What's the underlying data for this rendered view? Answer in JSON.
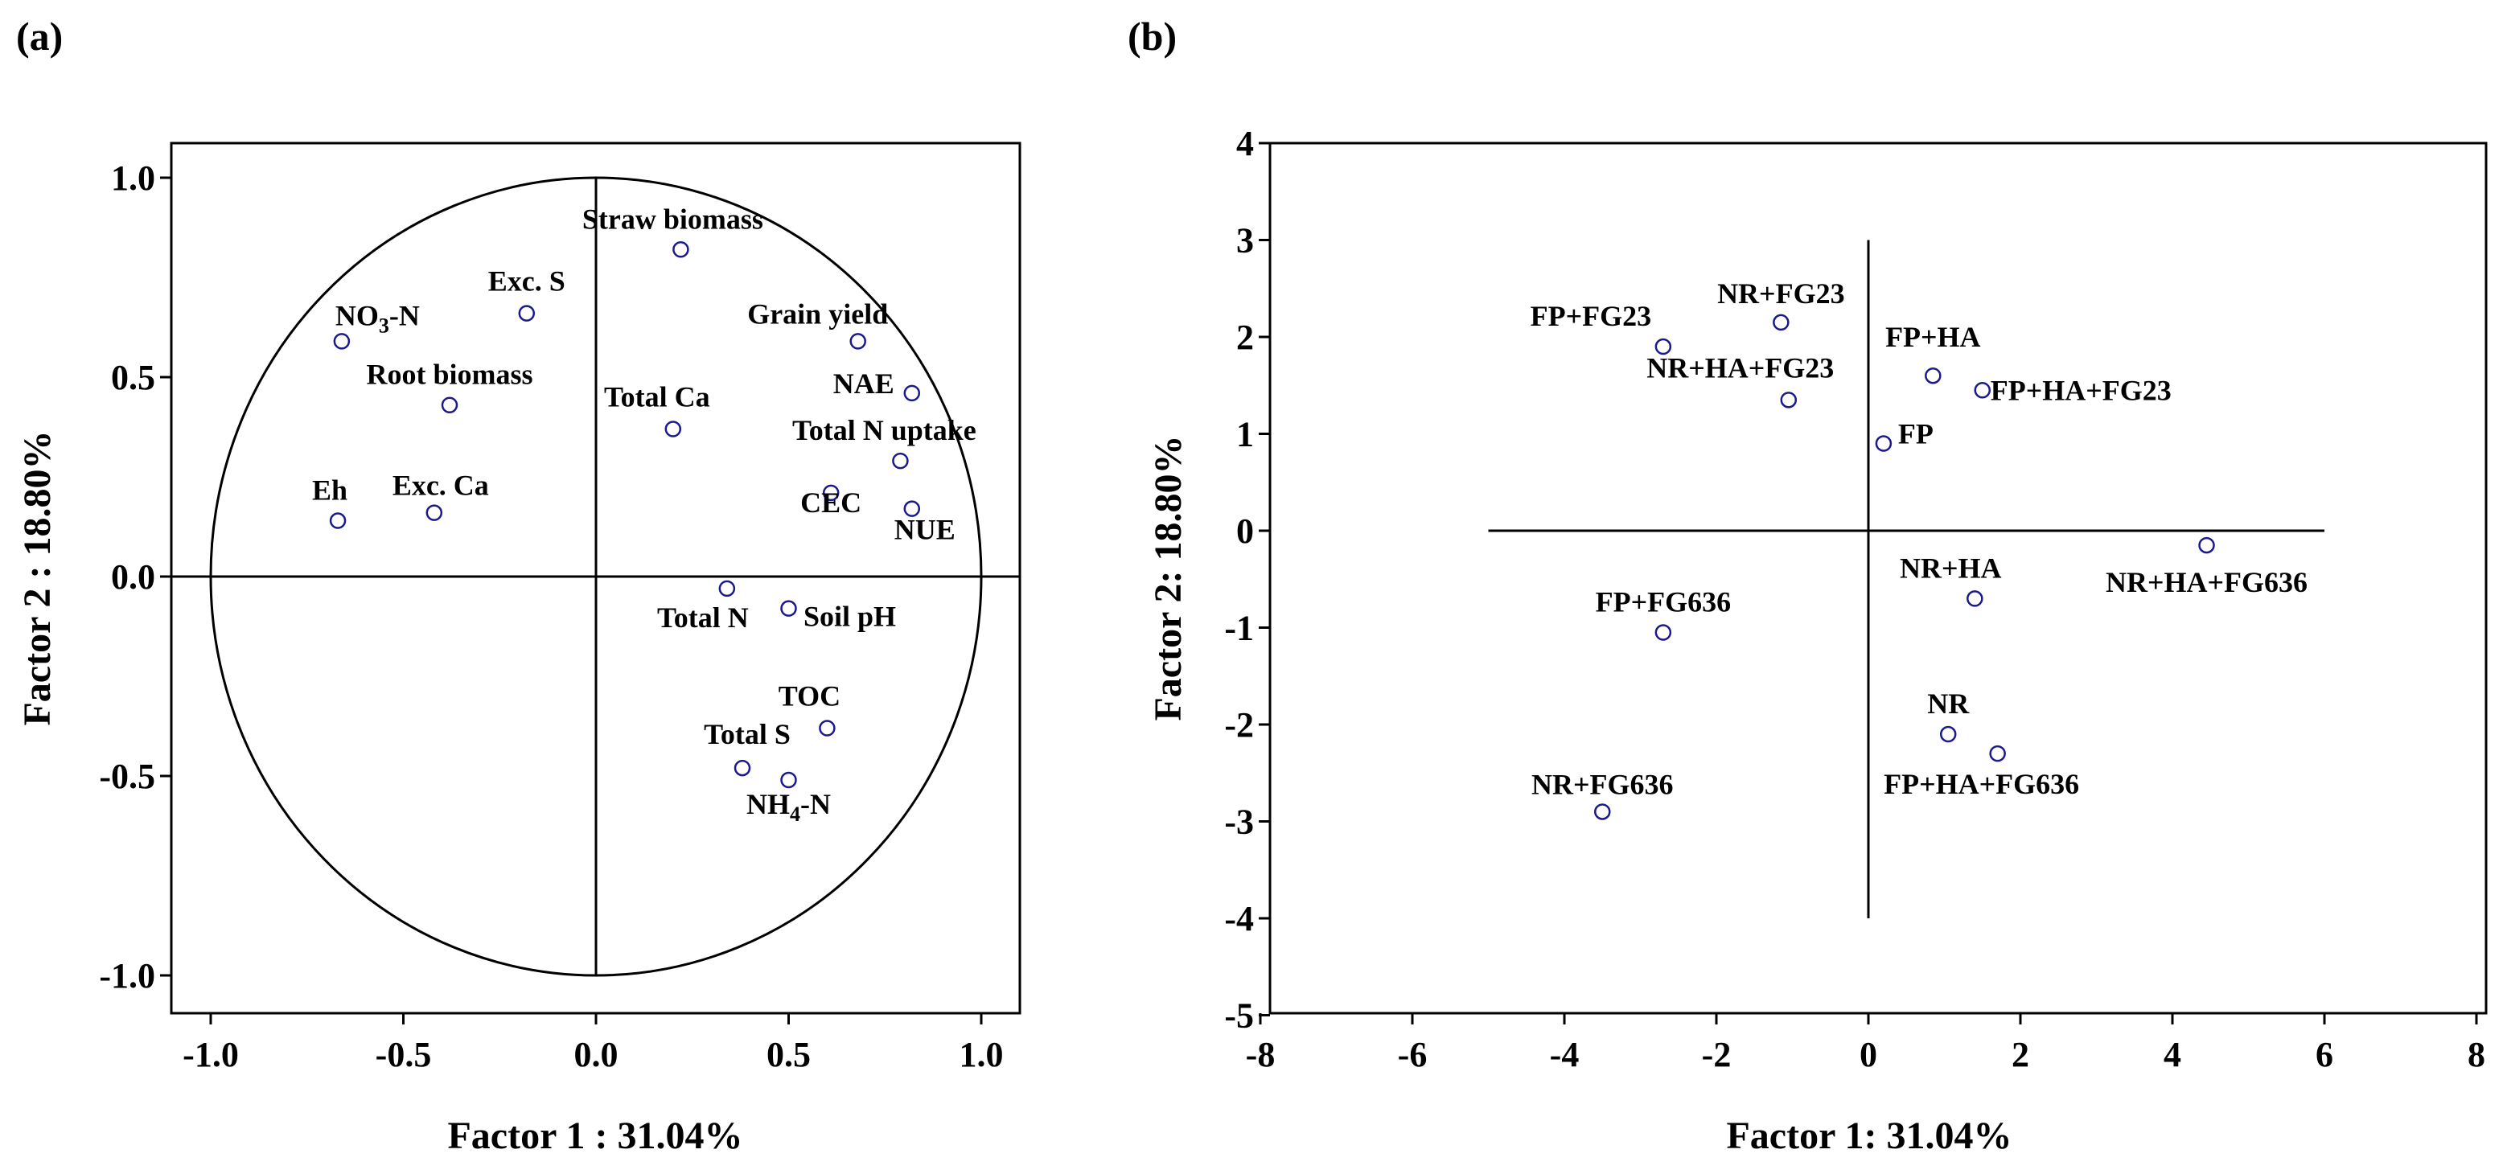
{
  "chart_data": [
    {
      "type": "scatter",
      "panel_label": "(a)",
      "xlabel": "Factor 1 : 31.04%",
      "ylabel": "Factor 2 : 18.80%",
      "xlim": [
        -1.1,
        1.1
      ],
      "ylim": [
        -1.1,
        1.1
      ],
      "xticks": [
        "-1.0",
        "-0.5",
        "0.0",
        "0.5",
        "1.0"
      ],
      "yticks": [
        "1.0",
        "0.5",
        "0.0",
        "-0.5",
        "-1.0"
      ],
      "unit_circle": true,
      "points": [
        {
          "label": "Straw biomass",
          "x": 0.22,
          "y": 0.82
        },
        {
          "label": "Exc. S",
          "x": -0.18,
          "y": 0.66
        },
        {
          "label": "NO3-N",
          "x": -0.66,
          "y": 0.59
        },
        {
          "label": "Grain yield",
          "x": 0.68,
          "y": 0.59
        },
        {
          "label": "NAE",
          "x": 0.82,
          "y": 0.46
        },
        {
          "label": "Root biomass",
          "x": -0.38,
          "y": 0.43
        },
        {
          "label": "Total Ca",
          "x": 0.2,
          "y": 0.37
        },
        {
          "label": "Total N uptake",
          "x": 0.79,
          "y": 0.29
        },
        {
          "label": "CEC",
          "x": 0.61,
          "y": 0.21
        },
        {
          "label": "NUE",
          "x": 0.82,
          "y": 0.17
        },
        {
          "label": "Eh",
          "x": -0.67,
          "y": 0.14
        },
        {
          "label": "Exc. Ca",
          "x": -0.42,
          "y": 0.16
        },
        {
          "label": "Total N",
          "x": 0.34,
          "y": -0.03
        },
        {
          "label": "Soil pH",
          "x": 0.5,
          "y": -0.08
        },
        {
          "label": "TOC",
          "x": 0.6,
          "y": -0.38
        },
        {
          "label": "Total S",
          "x": 0.38,
          "y": -0.48
        },
        {
          "label": "NH4-N",
          "x": 0.5,
          "y": -0.51
        }
      ]
    },
    {
      "type": "scatter",
      "panel_label": "(b)",
      "xlabel": "Factor 1: 31.04%",
      "ylabel": "Factor 2: 18.80%",
      "xlim": [
        -8,
        8
      ],
      "ylim": [
        -5,
        4
      ],
      "xticks": [
        "-8",
        "-6",
        "-4",
        "-2",
        "0",
        "2",
        "4",
        "6",
        "8"
      ],
      "yticks": [
        "4",
        "3",
        "2",
        "1",
        "0",
        "-1",
        "-2",
        "-3",
        "-4",
        "-5"
      ],
      "axis_cross": {
        "x_from": -5,
        "x_to": 6,
        "y_from": -4,
        "y_to": 3
      },
      "points": [
        {
          "label": "NR+FG23",
          "x": -1.15,
          "y": 2.15
        },
        {
          "label": "FP+FG23",
          "x": -2.7,
          "y": 1.9
        },
        {
          "label": "NR+HA+FG23",
          "x": -1.05,
          "y": 1.35
        },
        {
          "label": "FP+HA",
          "x": 0.85,
          "y": 1.6
        },
        {
          "label": "FP+HA+FG23",
          "x": 1.5,
          "y": 1.45
        },
        {
          "label": "FP",
          "x": 0.2,
          "y": 0.9
        },
        {
          "label": "NR+HA+FG636",
          "x": 4.45,
          "y": -0.15
        },
        {
          "label": "NR+HA",
          "x": 1.4,
          "y": -0.7
        },
        {
          "label": "FP+FG636",
          "x": -2.7,
          "y": -1.05
        },
        {
          "label": "NR",
          "x": 1.05,
          "y": -2.1
        },
        {
          "label": "FP+HA+FG636",
          "x": 1.7,
          "y": -2.3
        },
        {
          "label": "NR+FG636",
          "x": -3.5,
          "y": -2.9
        }
      ]
    }
  ]
}
